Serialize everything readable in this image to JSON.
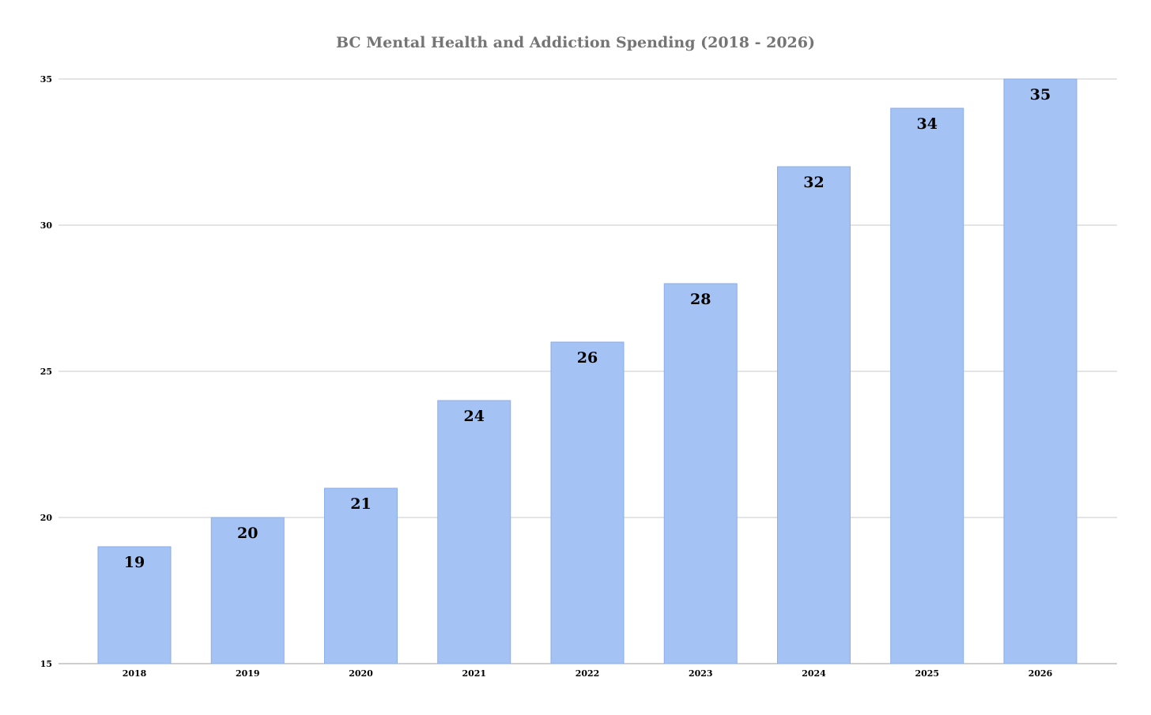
{
  "chart_data": {
    "type": "bar",
    "title": "BC Mental Health and Addiction Spending (2018 - 2026)",
    "xlabel": "",
    "ylabel": "",
    "categories": [
      "2018",
      "2019",
      "2020",
      "2021",
      "2022",
      "2023",
      "2024",
      "2025",
      "2026"
    ],
    "values": [
      19,
      20,
      21,
      24,
      26,
      28,
      32,
      34,
      35
    ],
    "data_labels": [
      "19",
      "20",
      "21",
      "24",
      "26",
      "28",
      "32",
      "34",
      "35"
    ],
    "ylim": [
      15,
      35
    ],
    "y_ticks": [
      "15",
      "20",
      "25",
      "30",
      "35"
    ],
    "y_tick_values": [
      15,
      20,
      25,
      30,
      35
    ],
    "grid": true,
    "legend": "none",
    "bar_color": "#a4c2f4",
    "bar_border_color": "#8aaeea",
    "title_color": "#757575"
  }
}
